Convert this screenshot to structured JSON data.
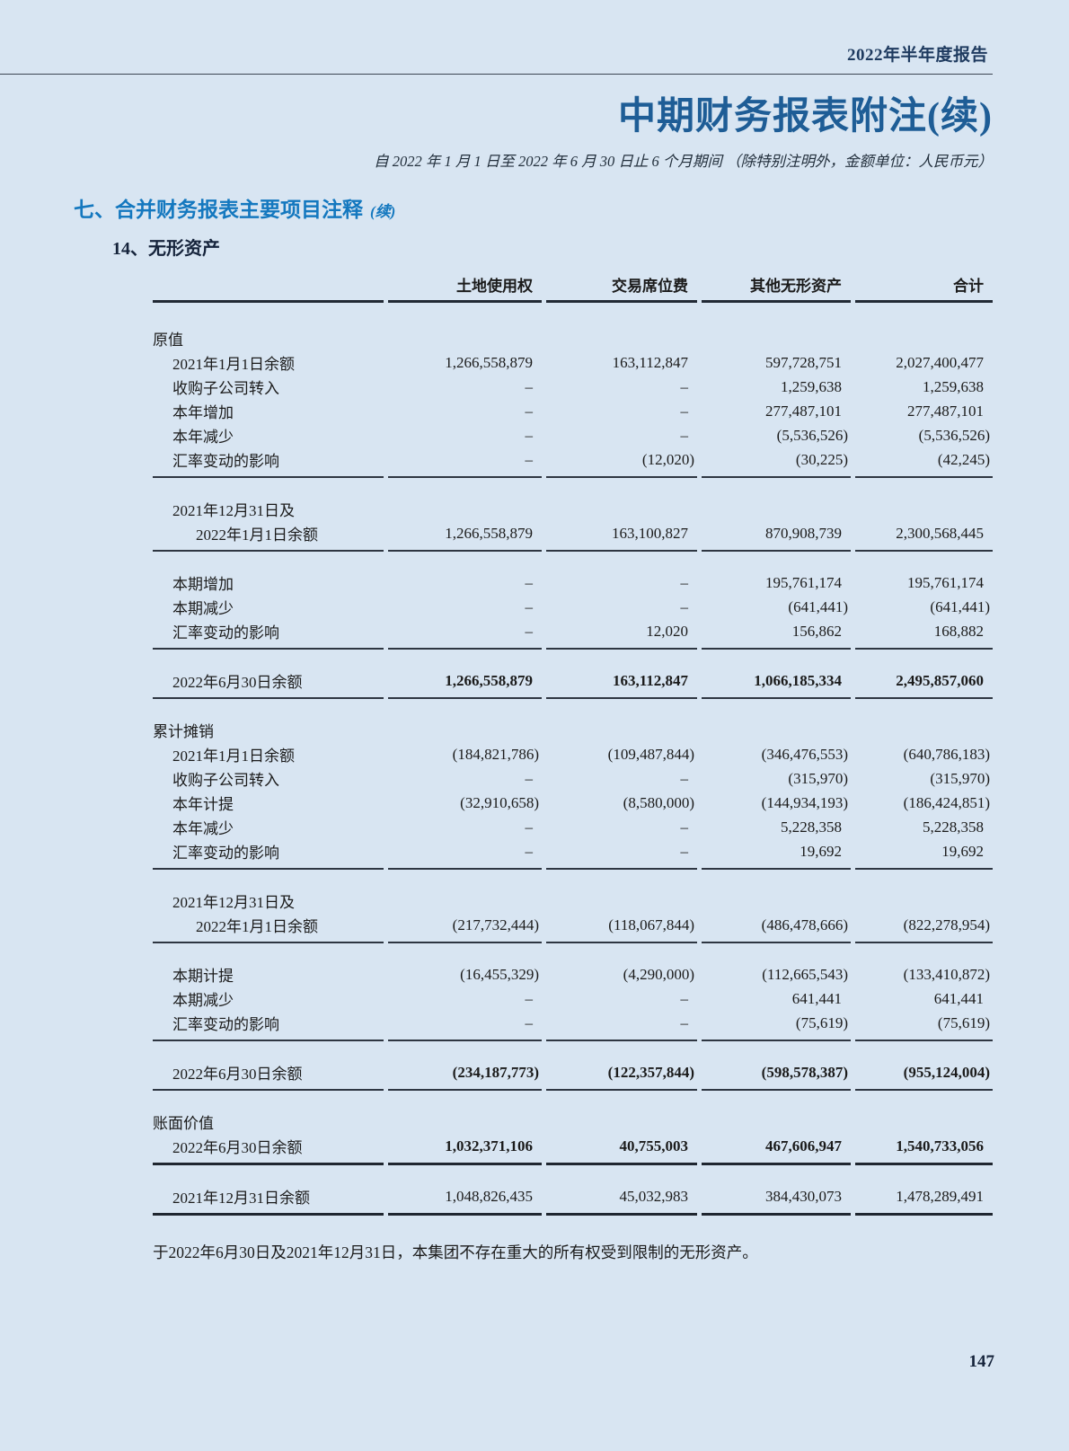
{
  "page": {
    "report_header": "2022年半年度报告",
    "title": "中期财务报表附注(续)",
    "subtitle": "自 2022 年 1 月 1 日至 2022 年 6 月 30 日止 6 个月期间 （除特别注明外，金额单位：人民币元）",
    "section_heading": "七、合并财务报表主要项目注释",
    "section_heading_suffix": "(续)",
    "subsection_heading": "14、无形资产",
    "note": "于2022年6月30日及2021年12月31日，本集团不存在重大的所有权受到限制的无形资产。",
    "page_number": "147"
  },
  "colors": {
    "background": "#d8e5f2",
    "title_blue": "#1e5d96",
    "section_blue": "#1478bf",
    "dark_navy": "#15233b",
    "body_text": "#1b1b1b"
  },
  "table": {
    "columns": [
      "土地使用权",
      "交易席位费",
      "其他无形资产",
      "合计"
    ],
    "rows": [
      {
        "type": "section",
        "label": "原值"
      },
      {
        "type": "data",
        "label": "2021年1月1日余额",
        "values": [
          "1,266,558,879",
          "163,112,847",
          "597,728,751",
          "2,027,400,477"
        ]
      },
      {
        "type": "data",
        "label": "收购子公司转入",
        "values": [
          "–",
          "–",
          "1,259,638",
          "1,259,638"
        ]
      },
      {
        "type": "data",
        "label": "本年增加",
        "values": [
          "–",
          "–",
          "277,487,101",
          "277,487,101"
        ]
      },
      {
        "type": "data",
        "label": "本年减少",
        "values": [
          "–",
          "–",
          "(5,536,526)",
          "(5,536,526)"
        ]
      },
      {
        "type": "data",
        "label": "汇率变动的影响",
        "values": [
          "–",
          "(12,020)",
          "(30,225)",
          "(42,245)"
        ]
      },
      {
        "type": "rule"
      },
      {
        "type": "data2",
        "label": "2021年12月31日及",
        "label2": "2022年1月1日余额",
        "values": [
          "1,266,558,879",
          "163,100,827",
          "870,908,739",
          "2,300,568,445"
        ]
      },
      {
        "type": "rule"
      },
      {
        "type": "data",
        "label": "本期增加",
        "values": [
          "–",
          "–",
          "195,761,174",
          "195,761,174"
        ]
      },
      {
        "type": "data",
        "label": "本期减少",
        "values": [
          "–",
          "–",
          "(641,441)",
          "(641,441)"
        ]
      },
      {
        "type": "data",
        "label": "汇率变动的影响",
        "values": [
          "–",
          "12,020",
          "156,862",
          "168,882"
        ]
      },
      {
        "type": "rule"
      },
      {
        "type": "data",
        "bold": true,
        "label": "2022年6月30日余额",
        "values": [
          "1,266,558,879",
          "163,112,847",
          "1,066,185,334",
          "2,495,857,060"
        ]
      },
      {
        "type": "rule"
      },
      {
        "type": "section",
        "label": "累计摊销"
      },
      {
        "type": "data",
        "label": "2021年1月1日余额",
        "values": [
          "(184,821,786)",
          "(109,487,844)",
          "(346,476,553)",
          "(640,786,183)"
        ]
      },
      {
        "type": "data",
        "label": "收购子公司转入",
        "values": [
          "–",
          "–",
          "(315,970)",
          "(315,970)"
        ]
      },
      {
        "type": "data",
        "label": "本年计提",
        "values": [
          "(32,910,658)",
          "(8,580,000)",
          "(144,934,193)",
          "(186,424,851)"
        ]
      },
      {
        "type": "data",
        "label": "本年减少",
        "values": [
          "–",
          "–",
          "5,228,358",
          "5,228,358"
        ]
      },
      {
        "type": "data",
        "label": "汇率变动的影响",
        "values": [
          "–",
          "–",
          "19,692",
          "19,692"
        ]
      },
      {
        "type": "rule"
      },
      {
        "type": "data2",
        "label": "2021年12月31日及",
        "label2": "2022年1月1日余额",
        "values": [
          "(217,732,444)",
          "(118,067,844)",
          "(486,478,666)",
          "(822,278,954)"
        ]
      },
      {
        "type": "rule"
      },
      {
        "type": "data",
        "label": "本期计提",
        "values": [
          "(16,455,329)",
          "(4,290,000)",
          "(112,665,543)",
          "(133,410,872)"
        ]
      },
      {
        "type": "data",
        "label": "本期减少",
        "values": [
          "–",
          "–",
          "641,441",
          "641,441"
        ]
      },
      {
        "type": "data",
        "label": "汇率变动的影响",
        "values": [
          "–",
          "–",
          "(75,619)",
          "(75,619)"
        ]
      },
      {
        "type": "rule"
      },
      {
        "type": "data",
        "bold": true,
        "label": "2022年6月30日余额",
        "values": [
          "(234,187,773)",
          "(122,357,844)",
          "(598,578,387)",
          "(955,124,004)"
        ]
      },
      {
        "type": "rule"
      },
      {
        "type": "section",
        "label": "账面价值"
      },
      {
        "type": "data",
        "bold": true,
        "label": "2022年6月30日余额",
        "values": [
          "1,032,371,106",
          "40,755,003",
          "467,606,947",
          "1,540,733,056"
        ]
      },
      {
        "type": "rule-thick"
      },
      {
        "type": "data",
        "label": "2021年12月31日余额",
        "values": [
          "1,048,826,435",
          "45,032,983",
          "384,430,073",
          "1,478,289,491"
        ]
      },
      {
        "type": "rule-thick"
      }
    ]
  }
}
